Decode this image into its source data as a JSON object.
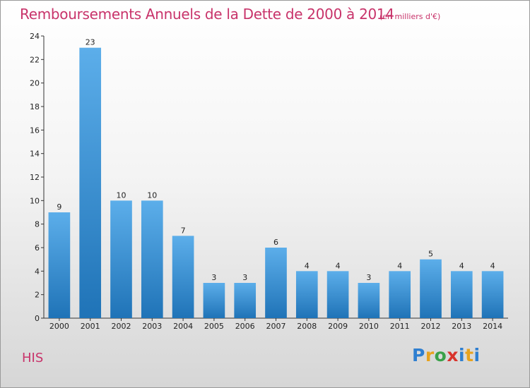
{
  "title": "Remboursements Annuels de la Dette de 2000 à 2014",
  "subtitle": "(en milliers d'€)",
  "commune": "HIS",
  "logo": {
    "text": "Proxiti",
    "letters": [
      "P",
      "r",
      "o",
      "x",
      "i",
      "t",
      "i"
    ]
  },
  "colors": {
    "title": "#c8336a",
    "bar_top": "#5caeea",
    "bar_bottom": "#1f73b7"
  },
  "chart_data": {
    "type": "bar",
    "categories": [
      "2000",
      "2001",
      "2002",
      "2003",
      "2004",
      "2005",
      "2006",
      "2007",
      "2008",
      "2009",
      "2010",
      "2011",
      "2012",
      "2013",
      "2014"
    ],
    "values": [
      9,
      23,
      10,
      10,
      7,
      3,
      3,
      6,
      4,
      4,
      3,
      4,
      5,
      4,
      4
    ],
    "title": "Remboursements Annuels de la Dette de 2000 à 2014",
    "subtitle": "(en milliers d'€)",
    "xlabel": "",
    "ylabel": "",
    "ylim": [
      0,
      24
    ],
    "yticks": [
      0,
      2,
      4,
      6,
      8,
      10,
      12,
      14,
      16,
      18,
      20,
      22,
      24
    ],
    "grid": false,
    "legend": "none"
  }
}
